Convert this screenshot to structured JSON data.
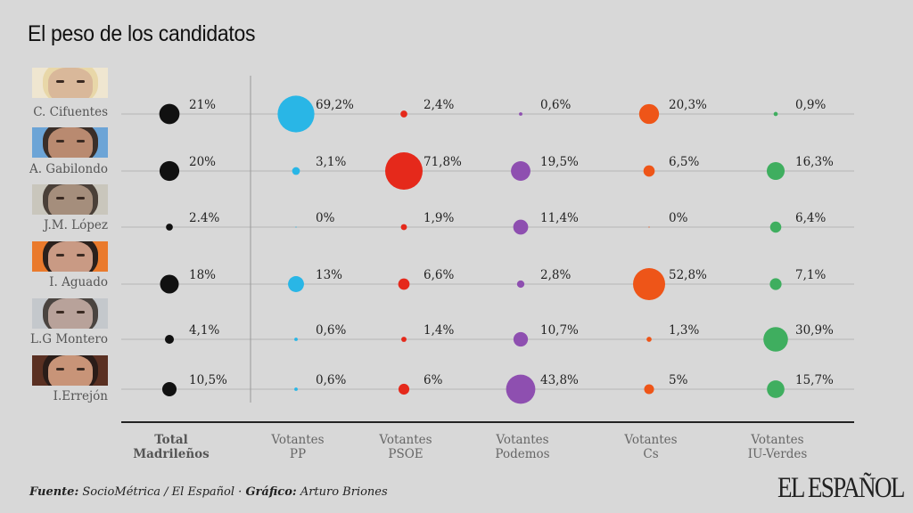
{
  "title": "El peso de los candidatos",
  "chart_data": {
    "type": "bubble-table",
    "title": "El peso de los candidatos",
    "candidates": [
      "C. Cifuentes",
      "A. Gabilondo",
      "J.M. López",
      "I. Aguado",
      "L.G Montero",
      "I.Errejón"
    ],
    "columns": [
      {
        "label_line1": "Total",
        "label_line2": "Madrileños",
        "color": "#111111",
        "bold": true
      },
      {
        "label_line1": "Votantes",
        "label_line2": "PP",
        "color": "#29b6e6",
        "bold": false
      },
      {
        "label_line1": "Votantes",
        "label_line2": "PSOE",
        "color": "#e5291b",
        "bold": false
      },
      {
        "label_line1": "Votantes",
        "label_line2": "Podemos",
        "color": "#8e4fb0",
        "bold": false
      },
      {
        "label_line1": "Votantes",
        "label_line2": "Cs",
        "color": "#ee5518",
        "bold": false
      },
      {
        "label_line1": "Votantes",
        "label_line2": "IU-Verdes",
        "color": "#3fae5f",
        "bold": false
      }
    ],
    "values": [
      [
        21,
        69.2,
        2.4,
        0.6,
        20.3,
        0.9
      ],
      [
        20,
        3.1,
        71.8,
        19.5,
        6.5,
        16.3
      ],
      [
        2.4,
        0,
        1.9,
        11.4,
        0,
        6.4
      ],
      [
        18,
        13,
        6.6,
        2.8,
        52.8,
        7.1
      ],
      [
        4.1,
        0.6,
        1.4,
        10.7,
        1.3,
        30.9
      ],
      [
        10.5,
        0.6,
        6,
        43.8,
        5,
        15.7
      ]
    ],
    "value_labels": [
      [
        "21%",
        "69,2%",
        "2,4%",
        "0,6%",
        "20,3%",
        "0,9%"
      ],
      [
        "20%",
        "3,1%",
        "71,8%",
        "19,5%",
        "6,5%",
        "16,3%"
      ],
      [
        "2.4%",
        "0%",
        "1,9%",
        "11,4%",
        "0%",
        "6,4%"
      ],
      [
        "18%",
        "13%",
        "6,6%",
        "2,8%",
        "52,8%",
        "7,1%"
      ],
      [
        "4,1%",
        "0,6%",
        "1,4%",
        "10,7%",
        "1,3%",
        "30,9%"
      ],
      [
        "10,5%",
        "0,6%",
        "6%",
        "43,8%",
        "5%",
        "15,7%"
      ]
    ],
    "unit": "%"
  },
  "photos": [
    {
      "skin": "#d9b89a",
      "hair": "#e8d7a8",
      "bg": "#efe6d0"
    },
    {
      "skin": "#b98a70",
      "hair": "#3a2e28",
      "bg": "#6ca4d6"
    },
    {
      "skin": "#a58e7c",
      "hair": "#4a4038",
      "bg": "#c9c6bc"
    },
    {
      "skin": "#c99a84",
      "hair": "#2a201c",
      "bg": "#ea7a2c"
    },
    {
      "skin": "#b8a29a",
      "hair": "#4a4440",
      "bg": "#c4c8cc"
    },
    {
      "skin": "#c89478",
      "hair": "#2a1c18",
      "bg": "#5a3022"
    }
  ],
  "source": {
    "fuente_label": "Fuente:",
    "fuente_text": "SocioMétrica / El Español ·",
    "grafico_label": "Gráfico:",
    "grafico_text": "Arturo Briones"
  },
  "logo": "EL ESPAÑOL"
}
